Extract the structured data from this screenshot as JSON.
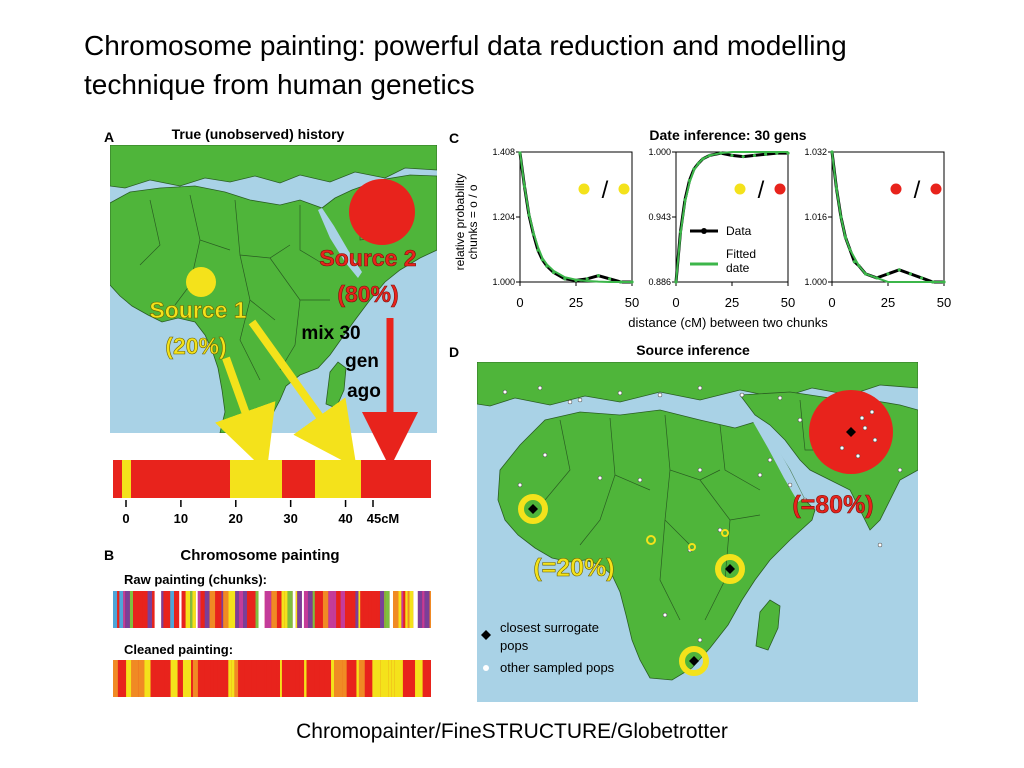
{
  "slide": {
    "title_line1": "Chromosome painting: powerful data reduction and modelling",
    "title_line2": "technique  from human genetics",
    "caption": "Chromopainter/FineSTRUCTURE/Globetrotter"
  },
  "colors": {
    "ocean": "#a9d2e6",
    "land": "#4fb53a",
    "border": "#2a5e22",
    "red": "#e8231c",
    "yellow": "#f4e21b",
    "fit_green": "#3cb64a"
  },
  "panel_a": {
    "letter": "A",
    "title": "True (unobserved) history",
    "source2_line1": "Source 2",
    "source2_line2": "(80%)",
    "source1_line1": "Source 1",
    "source1_line2": "(20%)",
    "mix1": "mix 30",
    "mix2": "gen",
    "mix3": "ago",
    "ticks": [
      "0",
      "10",
      "20",
      "30",
      "40",
      "45cM"
    ],
    "tick_values": [
      0,
      10,
      20,
      30,
      40,
      45
    ],
    "axis_max_cm": 45
  },
  "panel_b": {
    "letter": "B",
    "title": "Chromosome painting",
    "raw_label": "Raw painting (chunks):",
    "clean_label": "Cleaned painting:"
  },
  "panel_c": {
    "letter": "C",
    "title": "Date inference: 30 gens",
    "ylabel_line1": "relative probability",
    "ylabel_line2": "chunks = o / o",
    "xlabel": "distance (cM) between two chunks",
    "legend_data": "Data",
    "legend_fit_1": "Fitted",
    "legend_fit_2": "date",
    "slash": "/"
  },
  "panel_d": {
    "letter": "D",
    "title": "Source inference",
    "label_80": "(=80%)",
    "label_20": "(=20%)",
    "legend_surrogate_1": "closest surrogate",
    "legend_surrogate_2": "pops",
    "legend_other": "other sampled pops"
  },
  "chart_data": [
    {
      "type": "line",
      "title": "Date inference: 30 gens",
      "pair": "yellow / yellow",
      "xlabel": "distance (cM) between two chunks",
      "ylabel": "relative probability chunks = o / o",
      "xlim": [
        0,
        50
      ],
      "ylim": [
        1.0,
        1.408
      ],
      "xticks": [
        0,
        25,
        50
      ],
      "yticks": [
        1.0,
        1.204,
        1.408
      ],
      "ytick_labels": [
        "1.000",
        "1.204",
        "1.408"
      ],
      "series": [
        {
          "name": "Data",
          "x": [
            0,
            2,
            4,
            6,
            8,
            10,
            12,
            15,
            20,
            25,
            30,
            35,
            40,
            45,
            50
          ],
          "y": [
            1.405,
            1.3,
            1.21,
            1.15,
            1.1,
            1.07,
            1.05,
            1.03,
            1.01,
            1.005,
            1.01,
            1.02,
            1.01,
            1.0,
            1.0
          ]
        },
        {
          "name": "Fitted date",
          "x": [
            0,
            2,
            4,
            6,
            8,
            10,
            12,
            15,
            20,
            25,
            30,
            35,
            40,
            45,
            50
          ],
          "y": [
            1.408,
            1.3,
            1.215,
            1.155,
            1.11,
            1.075,
            1.055,
            1.035,
            1.015,
            1.007,
            1.003,
            1.001,
            1.0,
            1.0,
            1.0
          ]
        }
      ]
    },
    {
      "type": "line",
      "pair": "yellow / red",
      "xlim": [
        0,
        50
      ],
      "ylim": [
        0.886,
        1.0
      ],
      "xticks": [
        0,
        25,
        50
      ],
      "yticks": [
        0.886,
        0.943,
        1.0
      ],
      "ytick_labels": [
        "0.886",
        "0.943",
        "1.000"
      ],
      "series": [
        {
          "name": "Data",
          "x": [
            0,
            2,
            4,
            6,
            8,
            10,
            12,
            15,
            20,
            25,
            30,
            35,
            40,
            45,
            50
          ],
          "y": [
            0.886,
            0.93,
            0.958,
            0.975,
            0.985,
            0.99,
            0.994,
            0.997,
            0.999,
            0.997,
            0.996,
            0.997,
            0.998,
            0.999,
            0.999
          ]
        },
        {
          "name": "Fitted date",
          "x": [
            0,
            2,
            4,
            6,
            8,
            10,
            12,
            15,
            20,
            25,
            30,
            35,
            40,
            45,
            50
          ],
          "y": [
            0.886,
            0.928,
            0.956,
            0.973,
            0.984,
            0.99,
            0.994,
            0.997,
            0.999,
            1.0,
            1.0,
            1.0,
            1.0,
            1.0,
            1.0
          ]
        }
      ]
    },
    {
      "type": "line",
      "pair": "red / red",
      "xlim": [
        0,
        50
      ],
      "ylim": [
        1.0,
        1.032
      ],
      "xticks": [
        0,
        25,
        50
      ],
      "yticks": [
        1.0,
        1.016,
        1.032
      ],
      "ytick_labels": [
        "1.000",
        "1.016",
        "1.032"
      ],
      "series": [
        {
          "name": "Data",
          "x": [
            0,
            2,
            4,
            6,
            8,
            10,
            12,
            15,
            20,
            25,
            30,
            35,
            40,
            45,
            50
          ],
          "y": [
            1.032,
            1.023,
            1.016,
            1.011,
            1.008,
            1.005,
            1.004,
            1.002,
            1.001,
            1.002,
            1.003,
            1.002,
            1.001,
            1.0,
            1.0
          ]
        },
        {
          "name": "Fitted date",
          "x": [
            0,
            2,
            4,
            6,
            8,
            10,
            12,
            15,
            20,
            25,
            30,
            35,
            40,
            45,
            50
          ],
          "y": [
            1.032,
            1.023,
            1.016,
            1.011,
            1.008,
            1.006,
            1.004,
            1.002,
            1.001,
            1.0,
            1.0,
            1.0,
            1.0,
            1.0,
            1.0
          ]
        }
      ]
    }
  ]
}
